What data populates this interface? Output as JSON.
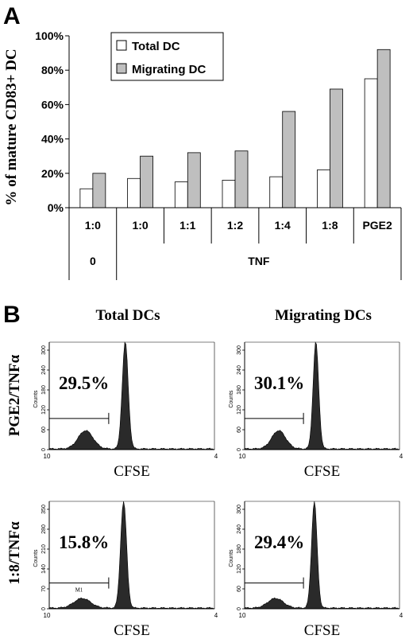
{
  "panels": {
    "a_label": "A",
    "b_label": "B"
  },
  "chart_data": [
    {
      "type": "bar",
      "ylabel": "% of mature CD83+ DC",
      "ylim": [
        0,
        100
      ],
      "yticks": [
        "0%",
        "20%",
        "40%",
        "60%",
        "80%",
        "100%"
      ],
      "categories": [
        "1:0",
        "1:0",
        "1:1",
        "1:2",
        "1:4",
        "1:8",
        "PGE2"
      ],
      "groups": [
        {
          "label": "0",
          "span": 1
        },
        {
          "label": "TNF",
          "span": 6
        }
      ],
      "series": [
        {
          "name": "Total DC",
          "color": "#ffffff",
          "values": [
            11,
            17,
            15,
            16,
            18,
            22,
            75
          ]
        },
        {
          "name": "Migrating DC",
          "color": "#bfbfbf",
          "values": [
            20,
            30,
            32,
            33,
            56,
            69,
            92
          ]
        }
      ],
      "legend": "top-left",
      "grid": false
    },
    {
      "type": "histogram",
      "column_titles": [
        "Total DCs",
        "Migrating DCs"
      ],
      "row_labels": [
        "PGE2/TNFα",
        "1:8/TNFα"
      ],
      "xlabel": "CFSE",
      "ylabel": "Counts",
      "x_tick_left": "10",
      "x_tick_right": "4",
      "gate_label": "M1",
      "panels": [
        {
          "row": 0,
          "col": 0,
          "percent": "29.5%",
          "yticks": [
            "0",
            "60",
            "120",
            "180",
            "240",
            "300"
          ],
          "show_gate_label": false
        },
        {
          "row": 0,
          "col": 1,
          "percent": "30.1%",
          "yticks": [
            "0",
            "60",
            "120",
            "180",
            "240",
            "300"
          ],
          "show_gate_label": false
        },
        {
          "row": 1,
          "col": 0,
          "percent": "15.8%",
          "yticks": [
            "0",
            "70",
            "140",
            "210",
            "280",
            "350"
          ],
          "show_gate_label": true
        },
        {
          "row": 1,
          "col": 1,
          "percent": "29.4%",
          "yticks": [
            "0",
            "60",
            "120",
            "180",
            "240",
            "300"
          ],
          "show_gate_label": false
        }
      ]
    }
  ]
}
